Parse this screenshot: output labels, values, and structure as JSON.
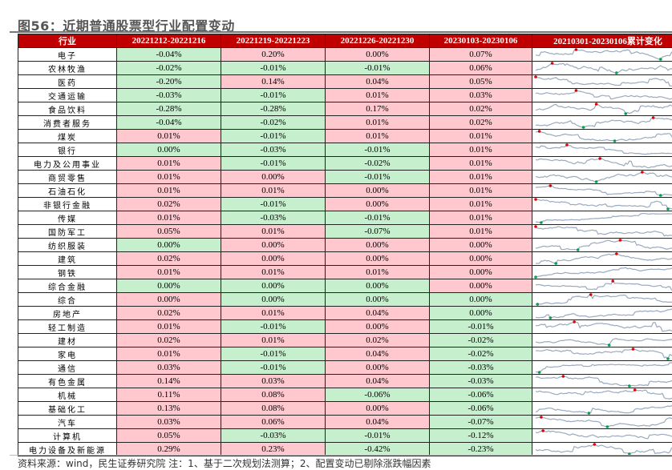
{
  "title": "图56：近期普通股票型行业配置变动",
  "headers": [
    "行业",
    "20221212-20221216",
    "20221219-20221223",
    "20221226-20221230",
    "20230103-20230106",
    "20210301-20230106累计变化"
  ],
  "colors": {
    "positive": "#ffc7ce",
    "negative": "#c6efce",
    "header": "#c00000",
    "spark_line": "#9aaabf",
    "spark_max": "#e00000",
    "spark_min": "#00a050"
  },
  "rows": [
    {
      "name": "电子",
      "values": [
        "-0.04%",
        "0.20%",
        "0.00%",
        "0.07%"
      ],
      "colors": [
        "g",
        "p",
        "p",
        "p"
      ]
    },
    {
      "name": "农林牧渔",
      "values": [
        "-0.02%",
        "-0.01%",
        "-0.01%",
        "0.06%"
      ],
      "colors": [
        "g",
        "g",
        "g",
        "p"
      ]
    },
    {
      "name": "医药",
      "values": [
        "-0.20%",
        "0.14%",
        "0.04%",
        "0.05%"
      ],
      "colors": [
        "g",
        "p",
        "p",
        "p"
      ]
    },
    {
      "name": "交通运输",
      "values": [
        "-0.03%",
        "-0.01%",
        "0.01%",
        "0.03%"
      ],
      "colors": [
        "g",
        "g",
        "p",
        "p"
      ]
    },
    {
      "name": "食品饮料",
      "values": [
        "-0.28%",
        "-0.28%",
        "0.17%",
        "0.02%"
      ],
      "colors": [
        "g",
        "g",
        "p",
        "p"
      ]
    },
    {
      "name": "消费者服务",
      "values": [
        "-0.04%",
        "-0.02%",
        "0.01%",
        "0.02%"
      ],
      "colors": [
        "g",
        "g",
        "p",
        "p"
      ]
    },
    {
      "name": "煤炭",
      "values": [
        "0.01%",
        "-0.01%",
        "0.01%",
        "0.01%"
      ],
      "colors": [
        "p",
        "g",
        "p",
        "p"
      ]
    },
    {
      "name": "银行",
      "values": [
        "0.00%",
        "-0.03%",
        "-0.01%",
        "0.01%"
      ],
      "colors": [
        "g",
        "g",
        "g",
        "p"
      ]
    },
    {
      "name": "电力及公用事业",
      "values": [
        "0.01%",
        "-0.01%",
        "-0.02%",
        "0.01%"
      ],
      "colors": [
        "p",
        "g",
        "g",
        "p"
      ]
    },
    {
      "name": "商贸零售",
      "values": [
        "0.01%",
        "0.00%",
        "-0.01%",
        "0.01%"
      ],
      "colors": [
        "p",
        "p",
        "g",
        "p"
      ]
    },
    {
      "name": "石油石化",
      "values": [
        "0.01%",
        "0.01%",
        "0.00%",
        "0.01%"
      ],
      "colors": [
        "p",
        "p",
        "p",
        "p"
      ]
    },
    {
      "name": "非银行金融",
      "values": [
        "0.02%",
        "-0.01%",
        "0.00%",
        "0.01%"
      ],
      "colors": [
        "p",
        "g",
        "p",
        "p"
      ]
    },
    {
      "name": "传媒",
      "values": [
        "0.01%",
        "-0.03%",
        "-0.01%",
        "0.01%"
      ],
      "colors": [
        "p",
        "g",
        "g",
        "p"
      ]
    },
    {
      "name": "国防军工",
      "values": [
        "0.05%",
        "0.01%",
        "-0.07%",
        "0.01%"
      ],
      "colors": [
        "p",
        "p",
        "g",
        "p"
      ]
    },
    {
      "name": "纺织服装",
      "values": [
        "0.00%",
        "0.00%",
        "0.00%",
        "0.00%"
      ],
      "colors": [
        "g",
        "p",
        "p",
        "p"
      ]
    },
    {
      "name": "建筑",
      "values": [
        "0.02%",
        "0.00%",
        "0.00%",
        "0.00%"
      ],
      "colors": [
        "p",
        "p",
        "p",
        "p"
      ]
    },
    {
      "name": "钢铁",
      "values": [
        "0.01%",
        "0.01%",
        "0.01%",
        "0.00%"
      ],
      "colors": [
        "p",
        "p",
        "p",
        "p"
      ]
    },
    {
      "name": "综合金融",
      "values": [
        "0.00%",
        "0.00%",
        "0.00%",
        "0.00%"
      ],
      "colors": [
        "g",
        "g",
        "g",
        "p"
      ]
    },
    {
      "name": "综合",
      "values": [
        "0.00%",
        "0.00%",
        "0.00%",
        "0.00%"
      ],
      "colors": [
        "p",
        "g",
        "g",
        "g"
      ]
    },
    {
      "name": "房地产",
      "values": [
        "0.02%",
        "0.01%",
        "0.04%",
        "0.00%"
      ],
      "colors": [
        "p",
        "p",
        "p",
        "g"
      ]
    },
    {
      "name": "轻工制造",
      "values": [
        "0.01%",
        "-0.01%",
        "0.00%",
        "-0.01%"
      ],
      "colors": [
        "p",
        "g",
        "p",
        "g"
      ]
    },
    {
      "name": "建材",
      "values": [
        "0.02%",
        "0.01%",
        "0.02%",
        "-0.02%"
      ],
      "colors": [
        "p",
        "p",
        "p",
        "g"
      ]
    },
    {
      "name": "家电",
      "values": [
        "0.01%",
        "-0.01%",
        "0.04%",
        "-0.02%"
      ],
      "colors": [
        "p",
        "g",
        "p",
        "g"
      ]
    },
    {
      "name": "通信",
      "values": [
        "0.03%",
        "-0.01%",
        "0.00%",
        "-0.03%"
      ],
      "colors": [
        "p",
        "g",
        "p",
        "g"
      ]
    },
    {
      "name": "有色金属",
      "values": [
        "0.14%",
        "0.03%",
        "0.04%",
        "-0.03%"
      ],
      "colors": [
        "p",
        "p",
        "p",
        "g"
      ]
    },
    {
      "name": "机械",
      "values": [
        "0.11%",
        "0.08%",
        "-0.06%",
        "-0.06%"
      ],
      "colors": [
        "p",
        "p",
        "g",
        "g"
      ]
    },
    {
      "name": "基础化工",
      "values": [
        "0.13%",
        "0.08%",
        "0.00%",
        "-0.06%"
      ],
      "colors": [
        "p",
        "p",
        "p",
        "g"
      ]
    },
    {
      "name": "汽车",
      "values": [
        "0.03%",
        "0.06%",
        "0.04%",
        "-0.07%"
      ],
      "colors": [
        "p",
        "p",
        "p",
        "g"
      ]
    },
    {
      "name": "计算机",
      "values": [
        "0.05%",
        "-0.03%",
        "-0.01%",
        "-0.12%"
      ],
      "colors": [
        "p",
        "g",
        "g",
        "g"
      ]
    },
    {
      "name": "电力设备及新能源",
      "values": [
        "0.29%",
        "0.23%",
        "-0.42%",
        "-0.23%"
      ],
      "colors": [
        "p",
        "p",
        "g",
        "g"
      ]
    }
  ],
  "footer": "资料来源：wind，民生证券研究院  注：1、基于二次规划法测算；2、配置变动已剔除涨跌幅因素"
}
